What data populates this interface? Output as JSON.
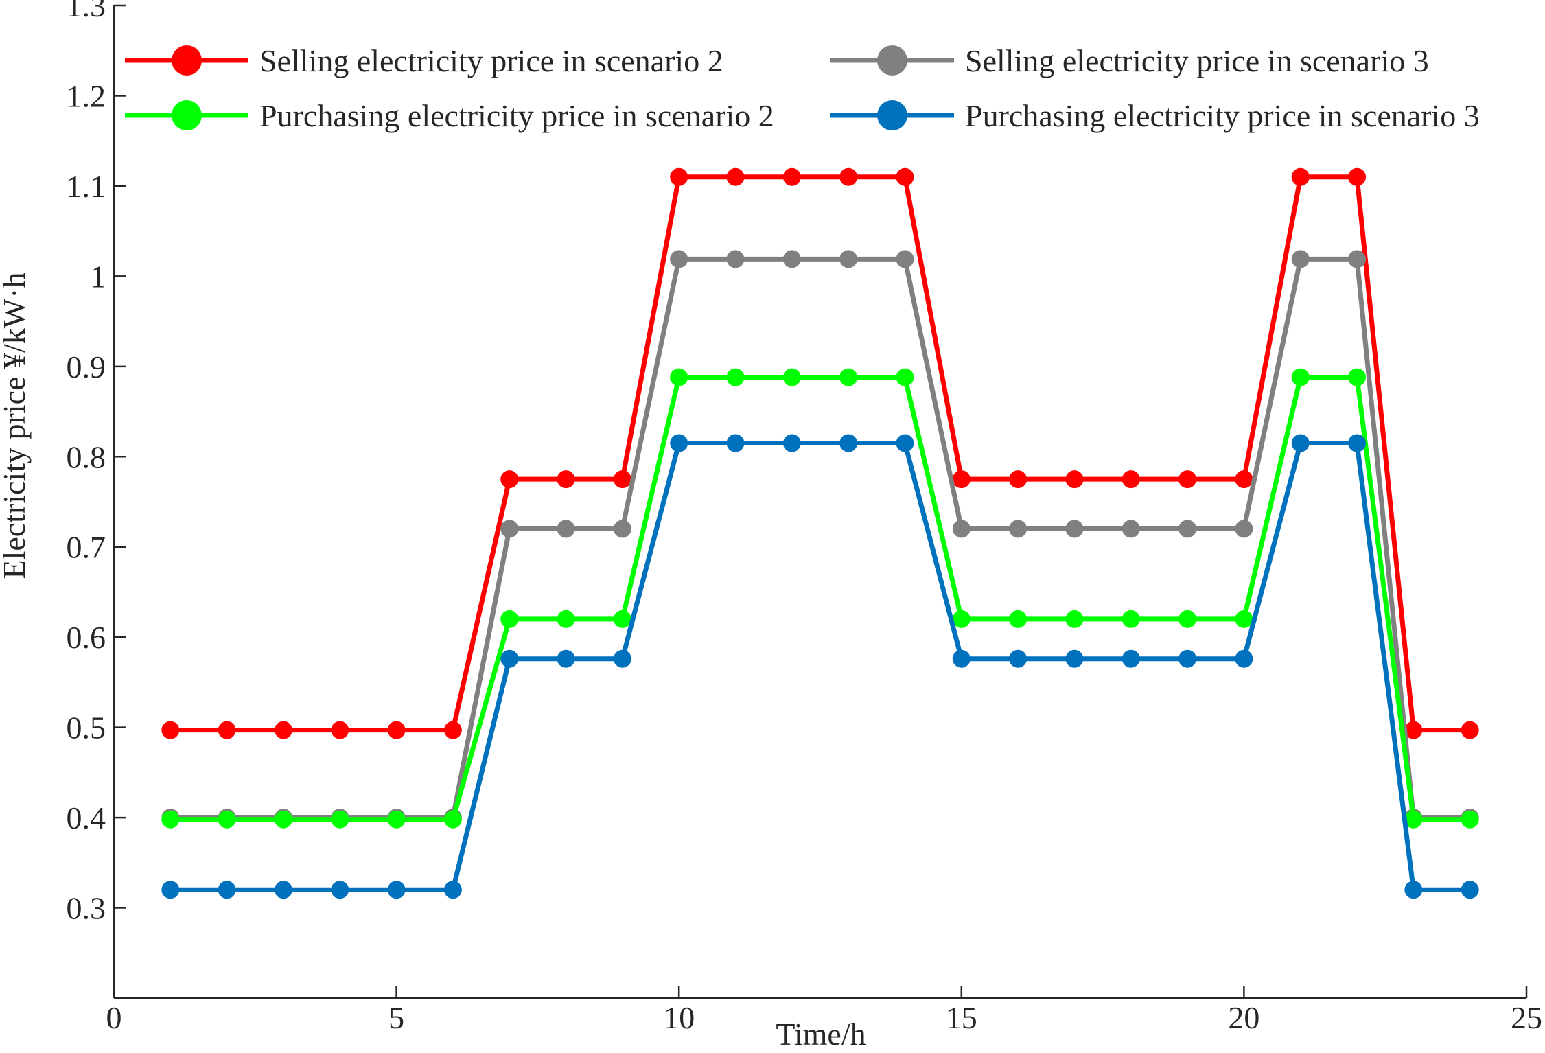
{
  "chart_data": {
    "type": "line",
    "title": "",
    "xlabel": "Time/h",
    "ylabel": "Electricity price ¥/kW·h",
    "xlim": [
      0,
      25
    ],
    "ylim": [
      0.2,
      1.3
    ],
    "xticks": [
      0,
      5,
      10,
      15,
      20,
      25
    ],
    "yticks": [
      0.3,
      0.4,
      0.5,
      0.6,
      0.7,
      0.8,
      0.9,
      1,
      1.1,
      1.2,
      1.3
    ],
    "x": [
      1,
      2,
      3,
      4,
      5,
      6,
      7,
      8,
      9,
      10,
      11,
      12,
      13,
      14,
      15,
      16,
      17,
      18,
      19,
      20,
      21,
      22,
      23,
      24
    ],
    "legend_position": "top",
    "series": [
      {
        "name": "Selling electricity price in scenario 2",
        "color": "#ff0000",
        "values": [
          0.497,
          0.497,
          0.497,
          0.497,
          0.497,
          0.497,
          0.775,
          0.775,
          0.775,
          1.11,
          1.11,
          1.11,
          1.11,
          1.11,
          0.775,
          0.775,
          0.775,
          0.775,
          0.775,
          0.775,
          1.11,
          1.11,
          0.497,
          0.497
        ]
      },
      {
        "name": "Selling electricity price in scenario 3",
        "color": "#808080",
        "values": [
          0.4,
          0.4,
          0.4,
          0.4,
          0.4,
          0.4,
          0.72,
          0.72,
          0.72,
          1.019,
          1.019,
          1.019,
          1.019,
          1.019,
          0.72,
          0.72,
          0.72,
          0.72,
          0.72,
          0.72,
          1.019,
          1.019,
          0.4,
          0.4
        ]
      },
      {
        "name": "Purchasing electricity price in scenario 2",
        "color": "#00ff00",
        "values": [
          0.398,
          0.398,
          0.398,
          0.398,
          0.398,
          0.398,
          0.62,
          0.62,
          0.62,
          0.888,
          0.888,
          0.888,
          0.888,
          0.888,
          0.62,
          0.62,
          0.62,
          0.62,
          0.62,
          0.62,
          0.888,
          0.888,
          0.398,
          0.398
        ]
      },
      {
        "name": "Purchasing electricity price in scenario 3",
        "color": "#0072bd",
        "values": [
          0.32,
          0.32,
          0.32,
          0.32,
          0.32,
          0.32,
          0.576,
          0.576,
          0.576,
          0.815,
          0.815,
          0.815,
          0.815,
          0.815,
          0.576,
          0.576,
          0.576,
          0.576,
          0.576,
          0.576,
          0.815,
          0.815,
          0.32,
          0.32
        ]
      }
    ]
  }
}
